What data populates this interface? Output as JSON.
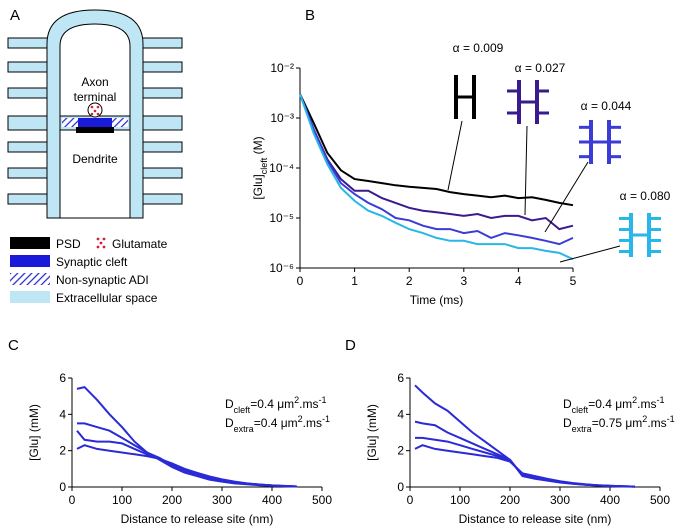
{
  "diagram": {
    "panel": "A",
    "texts": [
      "Axon",
      "terminal",
      "Dendrite"
    ],
    "legend": [
      "PSD",
      "Glutamate",
      "Synaptic cleft",
      "Non-synaptic ADI",
      "Extracellular space"
    ]
  },
  "chart_data": [
    {
      "type": "line",
      "panel": "B",
      "log_y": true,
      "xlabel": "Time (ms)",
      "ylabel": [
        {
          "text": "[Glu]"
        },
        {
          "text": "cleft",
          "style": "sub"
        },
        {
          "text": " (M)"
        }
      ],
      "x": [
        0,
        0.25,
        0.5,
        0.75,
        1,
        1.25,
        1.5,
        1.75,
        2,
        2.25,
        2.5,
        2.75,
        3,
        3.25,
        3.5,
        3.75,
        4,
        4.25,
        4.5,
        4.75,
        5
      ],
      "xlim": [
        0,
        5
      ],
      "xticks": [
        0,
        1,
        2,
        3,
        4,
        5
      ],
      "ylim": [
        1e-06,
        0.01
      ],
      "yticks": [
        {
          "value": 1e-06,
          "label": "10⁻⁶"
        },
        {
          "value": 1e-05,
          "label": "10⁻⁵"
        },
        {
          "value": 0.0001,
          "label": "10⁻⁴"
        },
        {
          "value": 0.001,
          "label": "10⁻³"
        },
        {
          "value": 0.01,
          "label": "10⁻²"
        }
      ],
      "series": [
        {
          "name": "α = 0.009",
          "color": "#000000",
          "values": [
            0.003,
            0.0008,
            0.0002,
            9e-05,
            6e-05,
            5.5e-05,
            5e-05,
            4.5e-05,
            4.2e-05,
            4e-05,
            3.8e-05,
            3.3e-05,
            3e-05,
            2.8e-05,
            2.6e-05,
            2.8e-05,
            2.5e-05,
            2.6e-05,
            2.3e-05,
            2e-05,
            1.8e-05
          ]
        },
        {
          "name": "α = 0.027",
          "color": "#3a1a8c",
          "values": [
            0.003,
            0.0006,
            0.00015,
            6e-05,
            3.5e-05,
            3.5e-05,
            2.5e-05,
            2e-05,
            1.6e-05,
            1.4e-05,
            1.3e-05,
            1.2e-05,
            1.1e-05,
            1.2e-05,
            1e-05,
            1.1e-05,
            1.1e-05,
            9e-06,
            1e-05,
            6e-06,
            7e-06
          ]
        },
        {
          "name": "α = 0.044",
          "color": "#3b3bd6",
          "values": [
            0.003,
            0.0006,
            0.00014,
            5e-05,
            3e-05,
            2e-05,
            1.5e-05,
            1e-05,
            9e-06,
            7e-06,
            6e-06,
            6e-06,
            5e-06,
            5.5e-06,
            4e-06,
            5e-06,
            4.5e-06,
            4e-06,
            3.5e-06,
            3e-06,
            4e-06
          ]
        },
        {
          "name": "α = 0.080",
          "color": "#29b6e8",
          "values": [
            0.003,
            0.0005,
            0.00012,
            4e-05,
            2.2e-05,
            1.4e-05,
            1.1e-05,
            8e-06,
            6e-06,
            5e-06,
            4e-06,
            3.5e-06,
            3.5e-06,
            3e-06,
            3e-06,
            3e-06,
            2.5e-06,
            2.5e-06,
            2.2e-06,
            2e-06,
            1.5e-06
          ]
        }
      ]
    },
    {
      "type": "line",
      "panel": "C",
      "xlabel": "Distance to release site (nm)",
      "ylabel": "[Glu] (mM)",
      "annotations": [
        [
          {
            "text": "D"
          },
          {
            "text": "cleft",
            "style": "sub"
          },
          {
            "text": "=0.4 μm"
          },
          {
            "text": "2",
            "style": "sup"
          },
          {
            "text": ".ms"
          },
          {
            "text": "-1",
            "style": "sup"
          }
        ],
        [
          {
            "text": "D"
          },
          {
            "text": "extra",
            "style": "sub"
          },
          {
            "text": "=0.4 μm"
          },
          {
            "text": "2",
            "style": "sup"
          },
          {
            "text": ".ms"
          },
          {
            "text": "-1",
            "style": "sup"
          }
        ]
      ],
      "x": [
        10,
        25,
        50,
        75,
        100,
        125,
        150,
        175,
        200,
        225,
        250,
        275,
        300,
        325,
        350,
        375,
        400,
        425,
        450
      ],
      "xlim": [
        0,
        500
      ],
      "xticks": [
        0,
        100,
        200,
        300,
        400,
        500
      ],
      "ylim": [
        0,
        6
      ],
      "yticks": [
        0,
        2,
        4,
        6
      ],
      "series": [
        {
          "color": "#2a2ad6",
          "values": [
            5.4,
            5.5,
            4.8,
            4.0,
            3.3,
            2.5,
            1.9,
            1.5,
            1.1,
            0.8,
            0.6,
            0.4,
            0.3,
            0.2,
            0.15,
            0.1,
            0.07,
            0.05,
            0.03
          ]
        },
        {
          "color": "#2a2ad6",
          "values": [
            3.5,
            3.5,
            3.3,
            3.1,
            2.7,
            2.3,
            1.9,
            1.6,
            1.2,
            0.9,
            0.7,
            0.5,
            0.35,
            0.25,
            0.18,
            0.12,
            0.08,
            0.05,
            0.03
          ]
        },
        {
          "color": "#2a2ad6",
          "values": [
            3.1,
            2.6,
            2.5,
            2.5,
            2.4,
            2.1,
            1.8,
            1.55,
            1.25,
            0.95,
            0.72,
            0.52,
            0.38,
            0.27,
            0.19,
            0.13,
            0.09,
            0.05,
            0.03
          ]
        },
        {
          "color": "#2a2ad6",
          "values": [
            2.1,
            2.3,
            2.1,
            2.0,
            1.9,
            1.8,
            1.7,
            1.55,
            1.3,
            1.0,
            0.78,
            0.58,
            0.42,
            0.3,
            0.2,
            0.14,
            0.09,
            0.06,
            0.03
          ]
        }
      ]
    },
    {
      "type": "line",
      "panel": "D",
      "xlabel": "Distance to release site (nm)",
      "ylabel": "[Glu] (mM)",
      "annotations": [
        [
          {
            "text": "D"
          },
          {
            "text": "cleft",
            "style": "sub"
          },
          {
            "text": "=0.4 μm"
          },
          {
            "text": "2",
            "style": "sup"
          },
          {
            "text": ".ms"
          },
          {
            "text": "-1",
            "style": "sup"
          }
        ],
        [
          {
            "text": "D"
          },
          {
            "text": "extra",
            "style": "sub"
          },
          {
            "text": "=0.75 μm"
          },
          {
            "text": "2",
            "style": "sup"
          },
          {
            "text": ".ms"
          },
          {
            "text": "-1",
            "style": "sup"
          }
        ]
      ],
      "x": [
        10,
        25,
        50,
        75,
        100,
        125,
        150,
        175,
        200,
        225,
        250,
        275,
        300,
        325,
        350,
        375,
        400,
        425,
        450
      ],
      "xlim": [
        0,
        500
      ],
      "xticks": [
        0,
        100,
        200,
        300,
        400,
        500
      ],
      "ylim": [
        0,
        6
      ],
      "yticks": [
        0,
        2,
        4,
        6
      ],
      "series": [
        {
          "color": "#2a2ad6",
          "values": [
            5.6,
            5.2,
            4.6,
            4.2,
            3.6,
            3.0,
            2.5,
            2.0,
            1.5,
            0.6,
            0.45,
            0.35,
            0.25,
            0.18,
            0.12,
            0.08,
            0.05,
            0.03,
            0.02
          ]
        },
        {
          "color": "#2a2ad6",
          "values": [
            3.6,
            3.5,
            3.4,
            3.0,
            2.7,
            2.4,
            2.1,
            1.8,
            1.5,
            0.65,
            0.5,
            0.38,
            0.27,
            0.19,
            0.13,
            0.09,
            0.06,
            0.04,
            0.02
          ]
        },
        {
          "color": "#2a2ad6",
          "values": [
            2.7,
            2.7,
            2.6,
            2.5,
            2.3,
            2.1,
            1.9,
            1.7,
            1.45,
            0.7,
            0.55,
            0.4,
            0.29,
            0.2,
            0.14,
            0.1,
            0.06,
            0.04,
            0.02
          ]
        },
        {
          "color": "#2a2ad6",
          "values": [
            2.1,
            2.3,
            2.1,
            2.0,
            1.9,
            1.8,
            1.7,
            1.6,
            1.4,
            0.75,
            0.6,
            0.45,
            0.32,
            0.22,
            0.15,
            0.1,
            0.07,
            0.04,
            0.02
          ]
        }
      ]
    }
  ]
}
